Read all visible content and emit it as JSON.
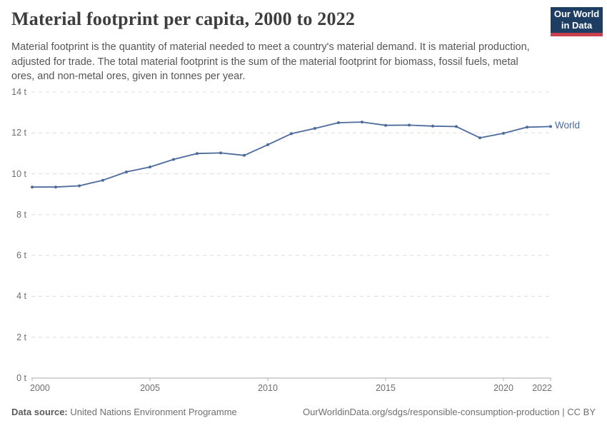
{
  "header": {
    "title": "Material footprint per capita, 2000 to 2022",
    "subtitle": "Material footprint is the quantity of material needed to meet a country's material demand. It is material production, adjusted for trade. The total material footprint is the sum of the material footprint for biomass, fossil fuels, metal ores, and non-metal ores, given in tonnes per year.",
    "logo": {
      "line1": "Our World",
      "line2": "in Data",
      "bg_color": "#1d3d63",
      "accent_color": "#c9414c"
    }
  },
  "chart_data": {
    "type": "line",
    "title": "Material footprint per capita, 2000 to 2022",
    "unit": "tonnes per year",
    "xlim": [
      2000,
      2022
    ],
    "ylim": [
      0,
      14
    ],
    "grid": "horizontal-dashed",
    "legend_position": "end-of-line",
    "x": [
      2000,
      2001,
      2002,
      2003,
      2004,
      2005,
      2006,
      2007,
      2008,
      2009,
      2010,
      2011,
      2012,
      2013,
      2014,
      2015,
      2016,
      2017,
      2018,
      2019,
      2020,
      2021,
      2022
    ],
    "series": [
      {
        "name": "World",
        "color": "#4c6a9c",
        "values": [
          9.35,
          9.35,
          9.41,
          9.68,
          10.09,
          10.33,
          10.7,
          10.99,
          11.02,
          10.9,
          11.42,
          11.96,
          12.22,
          12.5,
          12.53,
          12.37,
          12.38,
          12.33,
          12.31,
          11.76,
          11.98,
          12.28,
          12.31
        ]
      }
    ],
    "y_ticks": [
      {
        "value": 0,
        "label": "0 t"
      },
      {
        "value": 2,
        "label": "2 t"
      },
      {
        "value": 4,
        "label": "4 t"
      },
      {
        "value": 6,
        "label": "6 t"
      },
      {
        "value": 8,
        "label": "8 t"
      },
      {
        "value": 10,
        "label": "10 t"
      },
      {
        "value": 12,
        "label": "12 t"
      },
      {
        "value": 14,
        "label": "14 t"
      }
    ],
    "x_ticks": [
      {
        "value": 2000,
        "label": "2000",
        "align": "left"
      },
      {
        "value": 2005,
        "label": "2005",
        "align": "center"
      },
      {
        "value": 2010,
        "label": "2010",
        "align": "center"
      },
      {
        "value": 2015,
        "label": "2015",
        "align": "center"
      },
      {
        "value": 2020,
        "label": "2020",
        "align": "center"
      },
      {
        "value": 2022,
        "label": "2022",
        "align": "right"
      }
    ],
    "colors": {
      "gridline": "#dcdcdc",
      "axis": "#a8a8a8",
      "tick": "#b0b0b0"
    }
  },
  "footer": {
    "source_label": "Data source:",
    "source_value": "United Nations Environment Programme",
    "credit": "OurWorldinData.org/sdgs/responsible-consumption-production | CC BY"
  }
}
